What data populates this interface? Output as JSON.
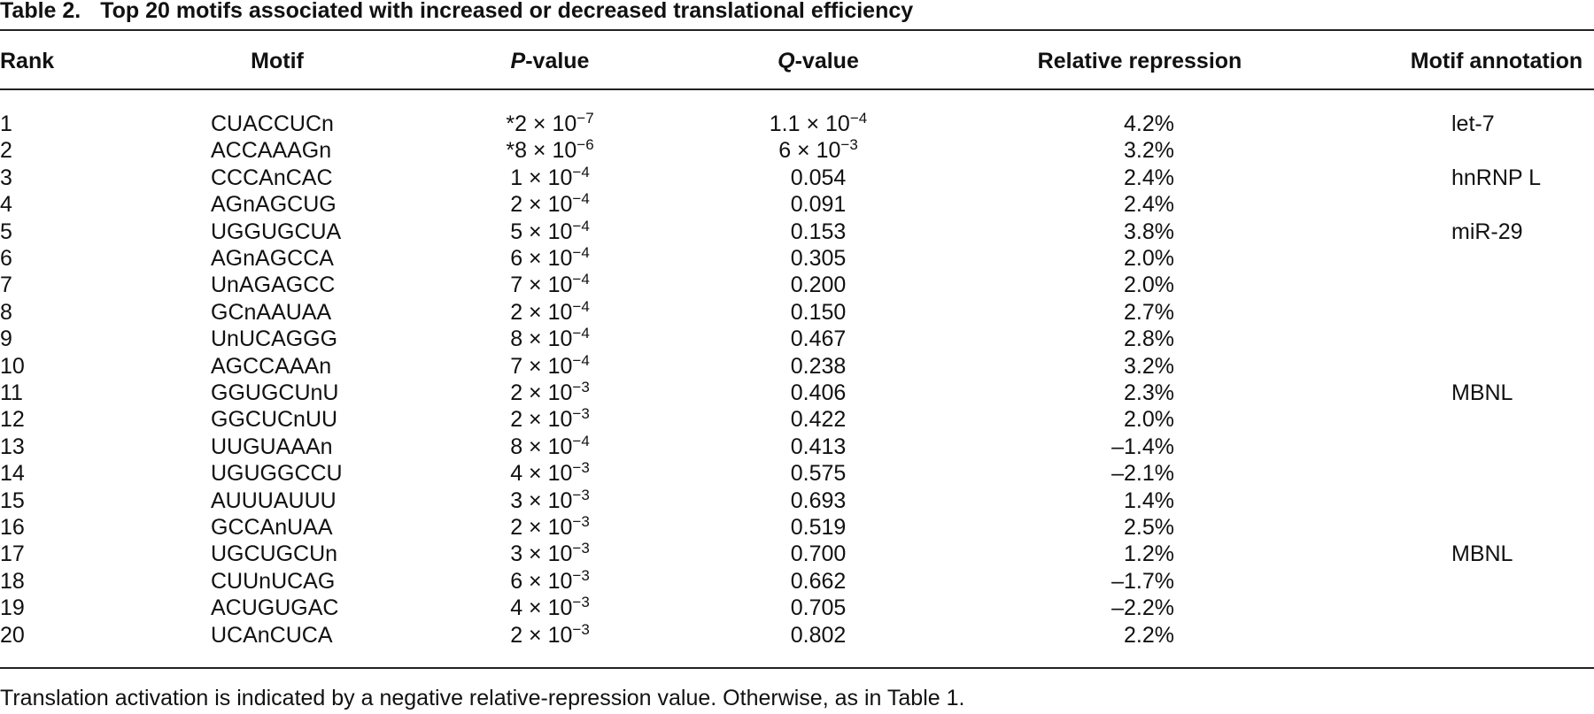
{
  "header": {
    "label": "Table 2.",
    "title": "Top 20 motifs associated with increased or decreased translational efficiency"
  },
  "table": {
    "columns": [
      "Rank",
      "Motif",
      {
        "italic": "P",
        "text": "-value"
      },
      {
        "italic": "Q",
        "text": "-value"
      },
      "Relative repression",
      "Motif annotation"
    ],
    "rows": [
      [
        "1",
        "CUACCUCn",
        {
          "base": "*2 × 10",
          "exp": "−7"
        },
        {
          "base": "1.1 × 10",
          "exp": "−4"
        },
        "4.2%",
        "let-7"
      ],
      [
        "2",
        "ACCAAAGn",
        {
          "base": "*8 × 10",
          "exp": "−6"
        },
        {
          "base": "6 × 10",
          "exp": "−3"
        },
        "3.2%",
        null
      ],
      [
        "3",
        "CCCAnCAC",
        {
          "base": "1 × 10",
          "exp": "−4"
        },
        "0.054",
        "2.4%",
        "hnRNP L"
      ],
      [
        "4",
        "AGnAGCUG",
        {
          "base": "2 × 10",
          "exp": "−4"
        },
        "0.091",
        "2.4%",
        null
      ],
      [
        "5",
        "UGGUGCUA",
        {
          "base": "5 × 10",
          "exp": "−4"
        },
        "0.153",
        "3.8%",
        "miR-29"
      ],
      [
        "6",
        "AGnAGCCA",
        {
          "base": "6 × 10",
          "exp": "−4"
        },
        "0.305",
        "2.0%",
        null
      ],
      [
        "7",
        "UnAGAGCC",
        {
          "base": "7 × 10",
          "exp": "−4"
        },
        "0.200",
        "2.0%",
        null
      ],
      [
        "8",
        "GCnAAUAA",
        {
          "base": "2 × 10",
          "exp": "−4"
        },
        "0.150",
        "2.7%",
        null
      ],
      [
        "9",
        "UnUCAGGG",
        {
          "base": "8 × 10",
          "exp": "−4"
        },
        "0.467",
        "2.8%",
        null
      ],
      [
        "10",
        "AGCCAAAn",
        {
          "base": "7 × 10",
          "exp": "−4"
        },
        "0.238",
        "3.2%",
        null
      ],
      [
        "11",
        "GGUGCUnU",
        {
          "base": "2 × 10",
          "exp": "−3"
        },
        "0.406",
        "2.3%",
        "MBNL"
      ],
      [
        "12",
        "GGCUCnUU",
        {
          "base": "2 × 10",
          "exp": "−3"
        },
        "0.422",
        "2.0%",
        null
      ],
      [
        "13",
        "UUGUAAAn",
        {
          "base": "8 × 10",
          "exp": "−4"
        },
        "0.413",
        "–1.4%",
        null
      ],
      [
        "14",
        "UGUGGCCU",
        {
          "base": "4 × 10",
          "exp": "−3"
        },
        "0.575",
        "–2.1%",
        null
      ],
      [
        "15",
        "AUUUAUUU",
        {
          "base": "3 × 10",
          "exp": "−3"
        },
        "0.693",
        "1.4%",
        null
      ],
      [
        "16",
        "GCCAnUAA",
        {
          "base": "2 × 10",
          "exp": "−3"
        },
        "0.519",
        "2.5%",
        null
      ],
      [
        "17",
        "UGCUGCUn",
        {
          "base": "3 × 10",
          "exp": "−3"
        },
        "0.700",
        "1.2%",
        "MBNL"
      ],
      [
        "18",
        "CUUnUCAG",
        {
          "base": "6 × 10",
          "exp": "−3"
        },
        "0.662",
        "–1.7%",
        null
      ],
      [
        "19",
        "ACUGUGAC",
        {
          "base": "4 × 10",
          "exp": "−3"
        },
        "0.705",
        "–2.2%",
        null
      ],
      [
        "20",
        "UCAnCUCA",
        {
          "base": "2 × 10",
          "exp": "−3"
        },
        "0.802",
        "2.2%",
        null
      ]
    ]
  },
  "footnote": "Translation activation is indicated by a negative relative-repression value. Otherwise, as in Table 1."
}
